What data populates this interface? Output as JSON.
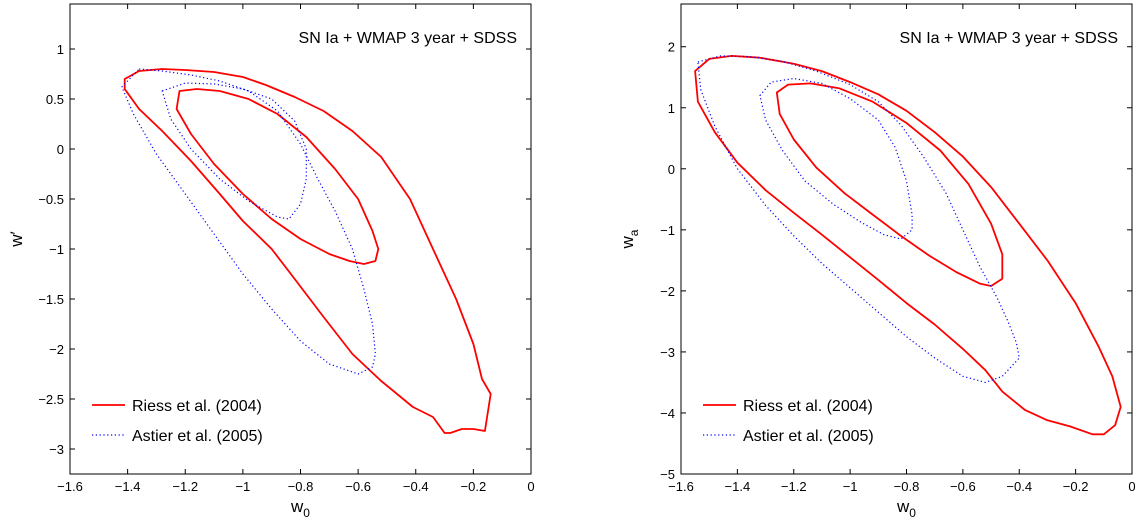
{
  "chart_data": [
    {
      "type": "line",
      "title": "SN Ia + WMAP 3 year + SDSS",
      "xlabel": "w",
      "xlabel_sub": "0",
      "ylabel": "w′",
      "xlim": [
        -1.6,
        0
      ],
      "ylim": [
        -3.25,
        1.45
      ],
      "xticks": [
        -1.6,
        -1.4,
        -1.2,
        -1,
        -0.8,
        -0.6,
        -0.4,
        -0.2,
        0
      ],
      "xtick_labels": [
        "−1.6",
        "−1.4",
        "−1.2",
        "−1",
        "−0.8",
        "−0.6",
        "−0.4",
        "−0.2",
        "0"
      ],
      "yticks": [
        1,
        0.5,
        0,
        -0.5,
        -1,
        -1.5,
        -2,
        -2.5,
        -3
      ],
      "ytick_labels": [
        "1",
        "0.5",
        "0",
        "−0.5",
        "−1",
        "−1.5",
        "−2",
        "−2.5",
        "−3"
      ],
      "grid": false,
      "legend_position": "bottom-left",
      "series": [
        {
          "name": "Riess et al. (2004)",
          "color": "#ff0000",
          "style": "solid",
          "contours": [
            [
              [
                -1.41,
                0.7
              ],
              [
                -1.36,
                0.78
              ],
              [
                -1.28,
                0.8
              ],
              [
                -1.2,
                0.79
              ],
              [
                -1.1,
                0.77
              ],
              [
                -1.0,
                0.72
              ],
              [
                -0.92,
                0.64
              ],
              [
                -0.82,
                0.52
              ],
              [
                -0.72,
                0.38
              ],
              [
                -0.62,
                0.18
              ],
              [
                -0.52,
                -0.08
              ],
              [
                -0.42,
                -0.5
              ],
              [
                -0.34,
                -1.0
              ],
              [
                -0.26,
                -1.5
              ],
              [
                -0.2,
                -1.95
              ],
              [
                -0.17,
                -2.3
              ],
              [
                -0.14,
                -2.45
              ],
              [
                -0.16,
                -2.82
              ],
              [
                -0.2,
                -2.8
              ],
              [
                -0.24,
                -2.8
              ],
              [
                -0.28,
                -2.84
              ],
              [
                -0.3,
                -2.84
              ],
              [
                -0.34,
                -2.68
              ],
              [
                -0.41,
                -2.58
              ],
              [
                -0.52,
                -2.32
              ],
              [
                -0.62,
                -2.05
              ],
              [
                -0.72,
                -1.68
              ],
              [
                -0.82,
                -1.3
              ],
              [
                -0.9,
                -1.0
              ],
              [
                -1.0,
                -0.72
              ],
              [
                -1.08,
                -0.45
              ],
              [
                -1.18,
                -0.12
              ],
              [
                -1.28,
                0.18
              ],
              [
                -1.36,
                0.4
              ],
              [
                -1.41,
                0.6
              ],
              [
                -1.41,
                0.7
              ]
            ],
            [
              [
                -1.22,
                0.58
              ],
              [
                -1.16,
                0.6
              ],
              [
                -1.08,
                0.58
              ],
              [
                -0.98,
                0.5
              ],
              [
                -0.88,
                0.35
              ],
              [
                -0.78,
                0.12
              ],
              [
                -0.68,
                -0.2
              ],
              [
                -0.6,
                -0.5
              ],
              [
                -0.55,
                -0.82
              ],
              [
                -0.53,
                -1.0
              ],
              [
                -0.54,
                -1.12
              ],
              [
                -0.58,
                -1.15
              ],
              [
                -0.63,
                -1.12
              ],
              [
                -0.7,
                -1.05
              ],
              [
                -0.8,
                -0.9
              ],
              [
                -0.9,
                -0.7
              ],
              [
                -1.0,
                -0.45
              ],
              [
                -1.1,
                -0.15
              ],
              [
                -1.18,
                0.15
              ],
              [
                -1.23,
                0.4
              ],
              [
                -1.22,
                0.58
              ]
            ]
          ]
        },
        {
          "name": "Astier et al. (2005)",
          "color": "#0000ff",
          "style": "dotted",
          "contours": [
            [
              [
                -1.36,
                0.8
              ],
              [
                -1.28,
                0.78
              ],
              [
                -1.18,
                0.74
              ],
              [
                -1.08,
                0.68
              ],
              [
                -0.98,
                0.58
              ],
              [
                -0.88,
                0.38
              ],
              [
                -0.8,
                0.05
              ],
              [
                -0.74,
                -0.3
              ],
              [
                -0.68,
                -0.62
              ],
              [
                -0.62,
                -1.0
              ],
              [
                -0.58,
                -1.4
              ],
              [
                -0.55,
                -1.75
              ],
              [
                -0.54,
                -2.05
              ],
              [
                -0.55,
                -2.18
              ],
              [
                -0.6,
                -2.25
              ],
              [
                -0.7,
                -2.15
              ],
              [
                -0.8,
                -1.92
              ],
              [
                -0.9,
                -1.6
              ],
              [
                -1.0,
                -1.25
              ],
              [
                -1.1,
                -0.85
              ],
              [
                -1.2,
                -0.45
              ],
              [
                -1.3,
                -0.05
              ],
              [
                -1.38,
                0.35
              ],
              [
                -1.42,
                0.62
              ],
              [
                -1.36,
                0.8
              ]
            ],
            [
              [
                -1.28,
                0.58
              ],
              [
                -1.2,
                0.66
              ],
              [
                -1.1,
                0.65
              ],
              [
                -1.0,
                0.6
              ],
              [
                -0.9,
                0.5
              ],
              [
                -0.82,
                0.28
              ],
              [
                -0.78,
                0.0
              ],
              [
                -0.78,
                -0.3
              ],
              [
                -0.8,
                -0.55
              ],
              [
                -0.84,
                -0.7
              ],
              [
                -0.88,
                -0.68
              ],
              [
                -0.98,
                -0.52
              ],
              [
                -1.08,
                -0.3
              ],
              [
                -1.18,
                0.0
              ],
              [
                -1.25,
                0.3
              ],
              [
                -1.28,
                0.58
              ]
            ]
          ]
        }
      ]
    },
    {
      "type": "line",
      "title": "SN Ia + WMAP 3 year + SDSS",
      "xlabel": "w",
      "xlabel_sub": "0",
      "ylabel": "w",
      "ylabel_sub": "a",
      "xlim": [
        -1.6,
        0
      ],
      "ylim": [
        -5,
        2.7
      ],
      "xticks": [
        -1.6,
        -1.4,
        -1.2,
        -1,
        -0.8,
        -0.6,
        -0.4,
        -0.2,
        0
      ],
      "xtick_labels": [
        "−1.6",
        "−1.4",
        "−1.2",
        "−1",
        "−0.8",
        "−0.6",
        "−0.4",
        "−0.2",
        "0"
      ],
      "yticks": [
        2,
        1,
        0,
        -1,
        -2,
        -3,
        -4,
        -5
      ],
      "ytick_labels": [
        "2",
        "1",
        "0",
        "−1",
        "−2",
        "−3",
        "−4",
        "−5"
      ],
      "grid": false,
      "legend_position": "bottom-left",
      "series": [
        {
          "name": "Riess et al. (2004)",
          "color": "#ff0000",
          "style": "solid",
          "contours": [
            [
              [
                -1.55,
                1.6
              ],
              [
                -1.5,
                1.8
              ],
              [
                -1.42,
                1.85
              ],
              [
                -1.32,
                1.82
              ],
              [
                -1.2,
                1.72
              ],
              [
                -1.1,
                1.6
              ],
              [
                -1.0,
                1.42
              ],
              [
                -0.9,
                1.22
              ],
              [
                -0.8,
                0.95
              ],
              [
                -0.7,
                0.6
              ],
              [
                -0.6,
                0.2
              ],
              [
                -0.5,
                -0.3
              ],
              [
                -0.4,
                -0.9
              ],
              [
                -0.3,
                -1.5
              ],
              [
                -0.2,
                -2.2
              ],
              [
                -0.12,
                -2.9
              ],
              [
                -0.07,
                -3.4
              ],
              [
                -0.04,
                -3.9
              ],
              [
                -0.06,
                -4.2
              ],
              [
                -0.1,
                -4.35
              ],
              [
                -0.14,
                -4.35
              ],
              [
                -0.22,
                -4.22
              ],
              [
                -0.3,
                -4.12
              ],
              [
                -0.38,
                -3.95
              ],
              [
                -0.46,
                -3.65
              ],
              [
                -0.52,
                -3.3
              ],
              [
                -0.6,
                -2.95
              ],
              [
                -0.7,
                -2.55
              ],
              [
                -0.8,
                -2.2
              ],
              [
                -0.9,
                -1.82
              ],
              [
                -1.0,
                -1.45
              ],
              [
                -1.1,
                -1.08
              ],
              [
                -1.2,
                -0.72
              ],
              [
                -1.3,
                -0.35
              ],
              [
                -1.4,
                0.1
              ],
              [
                -1.48,
                0.6
              ],
              [
                -1.54,
                1.1
              ],
              [
                -1.55,
                1.6
              ]
            ],
            [
              [
                -1.26,
                1.25
              ],
              [
                -1.22,
                1.38
              ],
              [
                -1.14,
                1.4
              ],
              [
                -1.04,
                1.32
              ],
              [
                -0.92,
                1.1
              ],
              [
                -0.8,
                0.75
              ],
              [
                -0.68,
                0.3
              ],
              [
                -0.58,
                -0.25
              ],
              [
                -0.5,
                -0.9
              ],
              [
                -0.46,
                -1.4
              ],
              [
                -0.46,
                -1.8
              ],
              [
                -0.5,
                -1.92
              ],
              [
                -0.54,
                -1.88
              ],
              [
                -0.62,
                -1.7
              ],
              [
                -0.72,
                -1.42
              ],
              [
                -0.82,
                -1.1
              ],
              [
                -0.92,
                -0.75
              ],
              [
                -1.02,
                -0.4
              ],
              [
                -1.12,
                0.02
              ],
              [
                -1.2,
                0.48
              ],
              [
                -1.25,
                0.9
              ],
              [
                -1.26,
                1.25
              ]
            ]
          ]
        },
        {
          "name": "Astier et al. (2005)",
          "color": "#0000ff",
          "style": "dotted",
          "contours": [
            [
              [
                -1.54,
                1.75
              ],
              [
                -1.46,
                1.85
              ],
              [
                -1.36,
                1.84
              ],
              [
                -1.24,
                1.76
              ],
              [
                -1.12,
                1.6
              ],
              [
                -1.0,
                1.38
              ],
              [
                -0.9,
                1.1
              ],
              [
                -0.82,
                0.72
              ],
              [
                -0.74,
                0.2
              ],
              [
                -0.66,
                -0.4
              ],
              [
                -0.6,
                -1.0
              ],
              [
                -0.54,
                -1.6
              ],
              [
                -0.48,
                -2.1
              ],
              [
                -0.44,
                -2.5
              ],
              [
                -0.41,
                -2.85
              ],
              [
                -0.4,
                -3.1
              ],
              [
                -0.46,
                -3.4
              ],
              [
                -0.52,
                -3.5
              ],
              [
                -0.6,
                -3.4
              ],
              [
                -0.7,
                -3.1
              ],
              [
                -0.8,
                -2.75
              ],
              [
                -0.9,
                -2.35
              ],
              [
                -1.0,
                -1.95
              ],
              [
                -1.1,
                -1.55
              ],
              [
                -1.2,
                -1.1
              ],
              [
                -1.3,
                -0.6
              ],
              [
                -1.4,
                0.0
              ],
              [
                -1.48,
                0.7
              ],
              [
                -1.53,
                1.3
              ],
              [
                -1.54,
                1.75
              ]
            ],
            [
              [
                -1.32,
                1.2
              ],
              [
                -1.28,
                1.42
              ],
              [
                -1.2,
                1.48
              ],
              [
                -1.1,
                1.4
              ],
              [
                -1.0,
                1.15
              ],
              [
                -0.9,
                0.8
              ],
              [
                -0.84,
                0.35
              ],
              [
                -0.8,
                -0.2
              ],
              [
                -0.78,
                -0.75
              ],
              [
                -0.78,
                -1.0
              ],
              [
                -0.82,
                -1.15
              ],
              [
                -0.88,
                -1.08
              ],
              [
                -0.96,
                -0.88
              ],
              [
                -1.06,
                -0.58
              ],
              [
                -1.16,
                -0.2
              ],
              [
                -1.24,
                0.3
              ],
              [
                -1.3,
                0.8
              ],
              [
                -1.32,
                1.2
              ]
            ]
          ]
        }
      ]
    }
  ]
}
